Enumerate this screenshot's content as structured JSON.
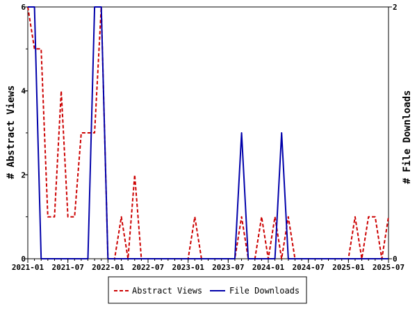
{
  "chart_data": {
    "type": "line",
    "x_tick_labels": [
      "2021-01",
      "2021-07",
      "2022-01",
      "2022-07",
      "2023-01",
      "2023-07",
      "2024-01",
      "2024-07",
      "2025-01",
      "2025-07"
    ],
    "y_left": {
      "label": "# Abstract Views",
      "ylim": [
        0,
        6
      ],
      "ticks": [
        "0",
        "2",
        "4",
        "6"
      ]
    },
    "y_right": {
      "label": "# File Downloads",
      "ylim": [
        0,
        2
      ],
      "ticks": [
        "0",
        "2"
      ]
    },
    "legend_position": "bottom-center",
    "grid": false,
    "series": [
      {
        "name": "Abstract Views",
        "axis": "left",
        "color": "#cc0000",
        "dash": "dashed",
        "x": [
          "2021-01",
          "2021-02",
          "2021-03",
          "2021-04",
          "2021-05",
          "2021-06",
          "2021-07",
          "2021-08",
          "2021-09",
          "2021-10",
          "2021-11",
          "2021-12",
          "2022-01",
          "2022-02",
          "2022-03",
          "2022-04",
          "2022-05",
          "2022-06",
          "2022-07",
          "2022-08",
          "2022-09",
          "2022-10",
          "2022-11",
          "2022-12",
          "2023-01",
          "2023-02",
          "2023-03",
          "2023-04",
          "2023-05",
          "2023-06",
          "2023-07",
          "2023-08",
          "2023-09",
          "2023-10",
          "2023-11",
          "2023-12",
          "2024-01",
          "2024-02",
          "2024-03",
          "2024-04",
          "2024-05",
          "2024-06",
          "2024-07",
          "2024-08",
          "2024-09",
          "2024-10",
          "2024-11",
          "2024-12",
          "2025-01",
          "2025-02",
          "2025-03",
          "2025-04",
          "2025-05",
          "2025-06",
          "2025-07"
        ],
        "y": [
          6,
          5,
          5,
          1,
          1,
          4,
          1,
          1,
          3,
          3,
          3,
          6,
          0,
          0,
          1,
          0,
          2,
          0,
          0,
          0,
          0,
          0,
          0,
          0,
          0,
          1,
          0,
          0,
          0,
          0,
          0,
          0,
          1,
          0,
          0,
          1,
          0,
          1,
          0,
          1,
          0,
          0,
          0,
          0,
          0,
          0,
          0,
          0,
          0,
          1,
          0,
          1,
          1,
          0,
          1
        ]
      },
      {
        "name": "File Downloads",
        "axis": "right",
        "color": "#0000aa",
        "dash": "solid",
        "x": [
          "2021-01",
          "2021-02",
          "2021-03",
          "2021-04",
          "2021-05",
          "2021-06",
          "2021-07",
          "2021-08",
          "2021-09",
          "2021-10",
          "2021-11",
          "2021-12",
          "2022-01",
          "2022-02",
          "2022-03",
          "2022-04",
          "2022-05",
          "2022-06",
          "2022-07",
          "2022-08",
          "2022-09",
          "2022-10",
          "2022-11",
          "2022-12",
          "2023-01",
          "2023-02",
          "2023-03",
          "2023-04",
          "2023-05",
          "2023-06",
          "2023-07",
          "2023-08",
          "2023-09",
          "2023-10",
          "2023-11",
          "2023-12",
          "2024-01",
          "2024-02",
          "2024-03",
          "2024-04",
          "2024-05",
          "2024-06",
          "2024-07",
          "2024-08",
          "2024-09",
          "2024-10",
          "2024-11",
          "2024-12",
          "2025-01",
          "2025-02",
          "2025-03",
          "2025-04",
          "2025-05",
          "2025-06",
          "2025-07"
        ],
        "y": [
          2,
          2,
          0,
          0,
          0,
          0,
          0,
          0,
          0,
          0,
          2,
          2,
          0,
          0,
          0,
          0,
          0,
          0,
          0,
          0,
          0,
          0,
          0,
          0,
          0,
          0,
          0,
          0,
          0,
          0,
          0,
          0,
          1,
          0,
          0,
          0,
          0,
          0,
          1,
          0,
          0,
          0,
          0,
          0,
          0,
          0,
          0,
          0,
          0,
          0,
          0,
          0,
          0,
          0,
          0
        ]
      }
    ]
  }
}
